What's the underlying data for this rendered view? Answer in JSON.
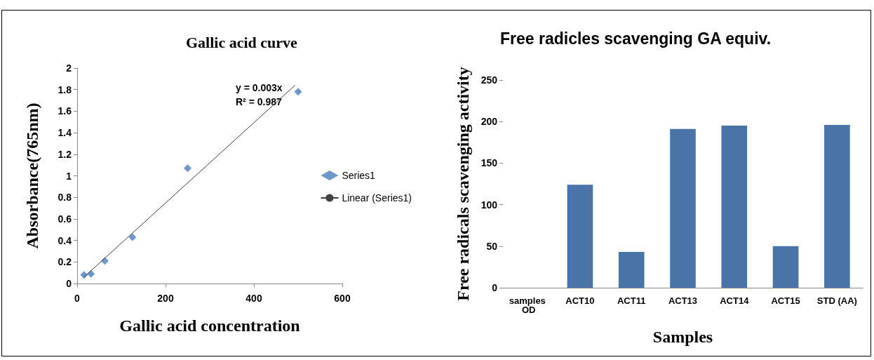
{
  "chart_data": [
    {
      "type": "scatter",
      "title": "Gallic acid curve",
      "xlabel": "Gallic acid concentration",
      "ylabel": "Absorbance(765nm)",
      "x": [
        15.6,
        31.25,
        62.5,
        125,
        250,
        500
      ],
      "series": [
        {
          "name": "Series1",
          "type": "scatter",
          "color": "#4a7ebb",
          "marker": "diamond",
          "values": [
            0.08,
            0.09,
            0.21,
            0.43,
            1.07,
            1.78
          ]
        },
        {
          "name": "Linear (Series1)",
          "type": "line",
          "color": "#404040",
          "marker": "none",
          "line_style": "solid",
          "x": [
            15.6,
            493
          ],
          "values": [
            0.06,
            1.84
          ]
        }
      ],
      "xlim": [
        0,
        600
      ],
      "xticks": [
        0,
        200,
        400,
        600
      ],
      "ylim": [
        0,
        2
      ],
      "yticks": [
        0,
        0.2,
        0.4,
        0.6,
        0.8,
        1,
        1.2,
        1.4,
        1.6,
        1.8,
        2
      ],
      "annotations": [
        "y = 0.003x",
        "R² = 0.987"
      ],
      "legend": "right",
      "grid": false
    },
    {
      "type": "bar",
      "title": "Free radicles scavenging GA equiv.",
      "xlabel": "Samples",
      "ylabel": "Free radicals scavenging activity",
      "categories": [
        "samples OD",
        "ACT10",
        "ACT11",
        "ACT13",
        "ACT14",
        "ACT15",
        "STD (AA)"
      ],
      "values": [
        null,
        124,
        43,
        191,
        195,
        50,
        196
      ],
      "color": "#4a73a8",
      "ylim": [
        0,
        250
      ],
      "yticks": [
        0,
        50,
        100,
        150,
        200,
        250
      ],
      "grid": false,
      "legend": false
    }
  ]
}
